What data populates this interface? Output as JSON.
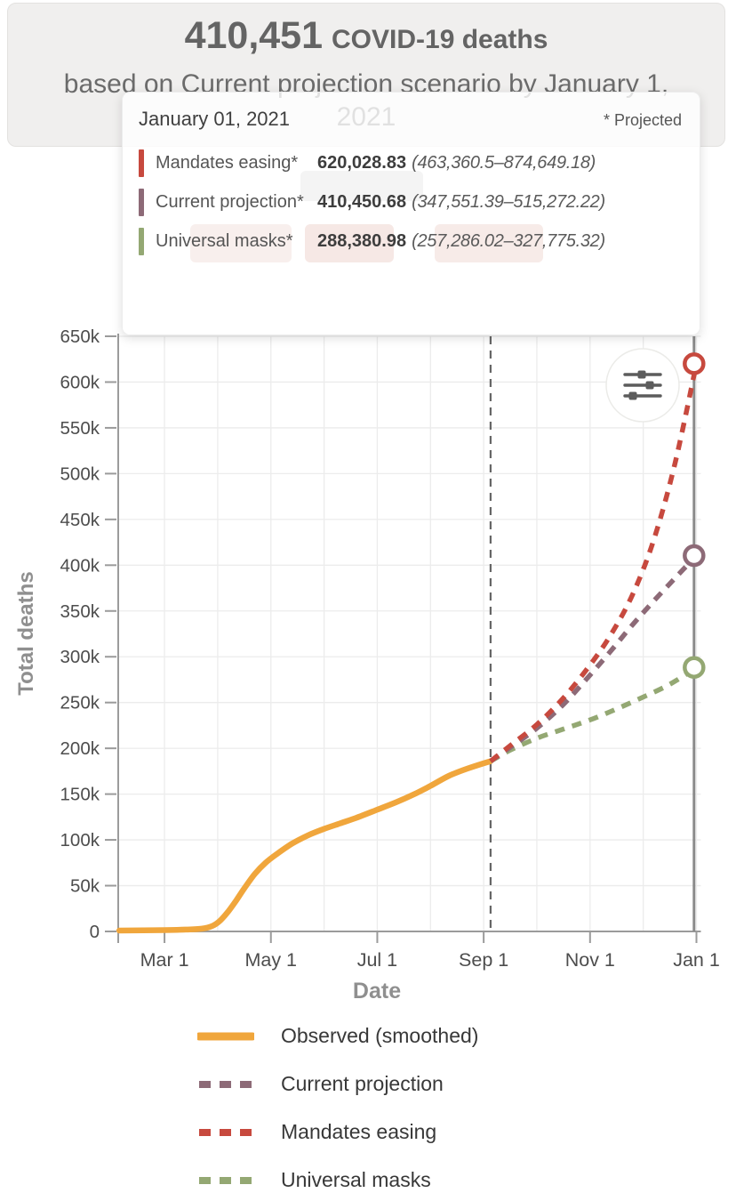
{
  "header": {
    "count": "410,451",
    "count_label": "COVID-19 deaths",
    "subtitle_line1": "based on Current projection scenario by January 1,",
    "subtitle_line2": "2021"
  },
  "tooltip": {
    "date": "January 01, 2021",
    "projected_note": "* Projected",
    "rows": [
      {
        "label": "Mandates easing*",
        "value": "620,028.83",
        "ci": "(463,360.5–874,649.18)",
        "color": "#c7493e"
      },
      {
        "label": "Current projection*",
        "value": "410,450.68",
        "ci": "(347,551.39–515,272.22)",
        "color": "#8d6a77"
      },
      {
        "label": "Universal masks*",
        "value": "288,380.98",
        "ci": "(257,286.02–327,775.32)",
        "color": "#94a873"
      }
    ]
  },
  "chart_data": {
    "type": "line",
    "xlabel": "Date",
    "ylabel": "Total deaths",
    "x_unit": "months after Mar 1, 2020",
    "xlim": [
      -0.87,
      10
    ],
    "ylim": [
      0,
      650
    ],
    "y_unit": "thousands of deaths",
    "grid": true,
    "x_ticks": [
      {
        "t": 0,
        "label": "Mar 1"
      },
      {
        "t": 2,
        "label": "May 1"
      },
      {
        "t": 4,
        "label": "Jul 1"
      },
      {
        "t": 6,
        "label": "Sep 1"
      },
      {
        "t": 8,
        "label": "Nov 1"
      },
      {
        "t": 10,
        "label": "Jan 1"
      }
    ],
    "y_ticks": [
      {
        "v": 0,
        "label": "0"
      },
      {
        "v": 50,
        "label": "50k"
      },
      {
        "v": 100,
        "label": "100k"
      },
      {
        "v": 150,
        "label": "150k"
      },
      {
        "v": 200,
        "label": "200k"
      },
      {
        "v": 250,
        "label": "250k"
      },
      {
        "v": 300,
        "label": "300k"
      },
      {
        "v": 350,
        "label": "350k"
      },
      {
        "v": 400,
        "label": "400k"
      },
      {
        "v": 450,
        "label": "450k"
      },
      {
        "v": 500,
        "label": "500k"
      },
      {
        "v": 550,
        "label": "550k"
      },
      {
        "v": 600,
        "label": "600k"
      },
      {
        "v": 650,
        "label": "650k"
      }
    ],
    "today_marker_t": 6.13,
    "hover_marker_t": 9.955,
    "series": [
      {
        "name": "Observed (smoothed)",
        "color": "#f0a63c",
        "style": "solid",
        "marker": false,
        "points": [
          [
            -0.85,
            1
          ],
          [
            0,
            1.5
          ],
          [
            0.4,
            2
          ],
          [
            0.7,
            3
          ],
          [
            0.9,
            6
          ],
          [
            1.05,
            12
          ],
          [
            1.2,
            22
          ],
          [
            1.35,
            34
          ],
          [
            1.5,
            47
          ],
          [
            1.7,
            63
          ],
          [
            1.9,
            75
          ],
          [
            2.1,
            84
          ],
          [
            2.4,
            96
          ],
          [
            2.7,
            105
          ],
          [
            3.0,
            112
          ],
          [
            3.3,
            118
          ],
          [
            3.6,
            124
          ],
          [
            4.0,
            133
          ],
          [
            4.35,
            141
          ],
          [
            4.7,
            150
          ],
          [
            5.0,
            159
          ],
          [
            5.35,
            170
          ],
          [
            5.7,
            178
          ],
          [
            6.13,
            186
          ]
        ]
      },
      {
        "name": "Universal masks",
        "color": "#94a873",
        "style": "dashed",
        "marker": true,
        "points": [
          [
            6.13,
            186
          ],
          [
            6.5,
            198
          ],
          [
            7.0,
            211
          ],
          [
            7.5,
            221
          ],
          [
            8.0,
            231
          ],
          [
            8.5,
            243
          ],
          [
            9.0,
            256
          ],
          [
            9.5,
            270
          ],
          [
            10,
            288.38
          ]
        ]
      },
      {
        "name": "Current projection",
        "color": "#8d6a77",
        "style": "dashed",
        "marker": true,
        "points": [
          [
            6.13,
            186
          ],
          [
            6.5,
            201
          ],
          [
            7.0,
            222
          ],
          [
            7.5,
            248
          ],
          [
            8.0,
            280
          ],
          [
            8.4,
            307
          ],
          [
            8.8,
            335
          ],
          [
            9.2,
            361
          ],
          [
            9.6,
            386
          ],
          [
            10,
            410.45
          ]
        ]
      },
      {
        "name": "Mandates easing",
        "color": "#c7493e",
        "style": "dashed",
        "marker": true,
        "points": [
          [
            6.13,
            186
          ],
          [
            6.5,
            203
          ],
          [
            7.0,
            226
          ],
          [
            7.5,
            255
          ],
          [
            8.0,
            291
          ],
          [
            8.4,
            325
          ],
          [
            8.8,
            368
          ],
          [
            9.2,
            428
          ],
          [
            9.6,
            512
          ],
          [
            10,
            620.03
          ]
        ]
      }
    ]
  },
  "legend": [
    {
      "label": "Observed (smoothed)",
      "color": "#f0a63c",
      "dashed": false
    },
    {
      "label": "Current projection",
      "color": "#8d6a77",
      "dashed": true
    },
    {
      "label": "Mandates easing",
      "color": "#c7493e",
      "dashed": true
    },
    {
      "label": "Universal masks",
      "color": "#94a873",
      "dashed": true
    }
  ],
  "chart_controls": {
    "settings_icon": "sliders-icon"
  }
}
